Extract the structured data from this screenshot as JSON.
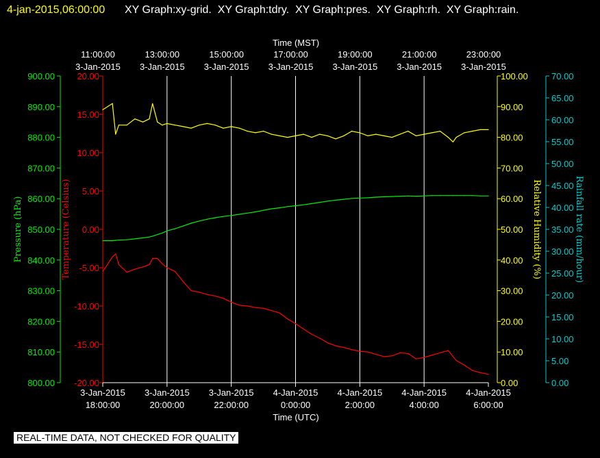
{
  "header": {
    "timestamp": "4-jan-2015,06:00:00",
    "titles": "XY Graph:xy-grid.  XY Graph:tdry.  XY Graph:pres.  XY Graph:rh.  XY Graph:rain."
  },
  "notice": "REAL-TIME DATA, NOT CHECKED FOR QUALITY",
  "colors": {
    "background": "#000000",
    "temperature": "#ff0000",
    "pressure": "#00ee00",
    "humidity": "#ffff00",
    "rainfall": "#00cccc",
    "grid": "#ffffff",
    "axis_text": "#ffffff",
    "timestamp": "#ffff00"
  },
  "chart_data": {
    "type": "line",
    "grid": true,
    "top_axis": {
      "title": "Time (MST)",
      "ticks": [
        {
          "time": "11:00:00",
          "date": "3-Jan-2015"
        },
        {
          "time": "13:00:00",
          "date": "3-Jan-2015"
        },
        {
          "time": "15:00:00",
          "date": "3-Jan-2015"
        },
        {
          "time": "17:00:00",
          "date": "3-Jan-2015"
        },
        {
          "time": "19:00:00",
          "date": "3-Jan-2015"
        },
        {
          "time": "21:00:00",
          "date": "3-Jan-2015"
        },
        {
          "time": "23:00:00",
          "date": "3-Jan-2015"
        }
      ]
    },
    "bottom_axis": {
      "title": "Time (UTC)",
      "ticks": [
        {
          "date": "3-Jan-2015",
          "time": "18:00:00"
        },
        {
          "date": "3-Jan-2015",
          "time": "20:00:00"
        },
        {
          "date": "3-Jan-2015",
          "time": "22:00:00"
        },
        {
          "date": "4-Jan-2015",
          "time": "0:00:00"
        },
        {
          "date": "4-Jan-2015",
          "time": "2:00:00"
        },
        {
          "date": "4-Jan-2015",
          "time": "4:00:00"
        },
        {
          "date": "4-Jan-2015",
          "time": "6:00:00"
        }
      ],
      "range": [
        "2015-01-03 18:00",
        "2015-01-04 06:00"
      ]
    },
    "axes": {
      "pressure": {
        "label": "Pressure (hPa)",
        "ylim": [
          800,
          900
        ],
        "ticks": [
          "800.00",
          "810.00",
          "820.00",
          "830.00",
          "840.00",
          "850.00",
          "860.00",
          "870.00",
          "880.00",
          "890.00",
          "900.00"
        ]
      },
      "temperature": {
        "label": "Temperature (Celsius)",
        "ylim": [
          -20,
          20
        ],
        "ticks": [
          "-20.00",
          "-15.00",
          "-10.00",
          "-5.00",
          "0.00",
          "5.00",
          "10.00",
          "15.00",
          "20.00"
        ]
      },
      "humidity": {
        "label": "Relative Humidity (%)",
        "ylim": [
          0,
          100
        ],
        "ticks": [
          "0.00",
          "10.00",
          "20.00",
          "30.00",
          "40.00",
          "50.00",
          "60.00",
          "70.00",
          "80.00",
          "90.00",
          "100.00"
        ]
      },
      "rainfall": {
        "label": "Rainfall rate (mm/hour)",
        "ylim": [
          0,
          70
        ],
        "ticks": [
          "0.00",
          "5.00",
          "10.00",
          "15.00",
          "20.00",
          "25.00",
          "30.00",
          "35.00",
          "40.00",
          "45.00",
          "50.00",
          "55.00",
          "60.00",
          "65.00",
          "70.00"
        ]
      }
    },
    "hours_since_2015-01-03T18:00Z": [
      0,
      0.3,
      0.4,
      0.5,
      0.75,
      1.0,
      1.25,
      1.45,
      1.55,
      1.7,
      1.85,
      2.0,
      2.25,
      2.5,
      2.75,
      3.0,
      3.25,
      3.5,
      3.75,
      4.0,
      4.25,
      4.5,
      4.75,
      5.0,
      5.25,
      5.5,
      5.75,
      6.0,
      6.25,
      6.5,
      6.75,
      7.0,
      7.25,
      7.5,
      7.75,
      8.0,
      8.25,
      8.5,
      8.75,
      9.0,
      9.25,
      9.5,
      9.75,
      10.0,
      10.25,
      10.5,
      10.75,
      10.9,
      11.0,
      11.25,
      11.5,
      11.75,
      12.0
    ],
    "series": [
      {
        "name": "tdry",
        "axis": "temperature",
        "values": [
          -5.5,
          -3.6,
          -3.2,
          -4.6,
          -5.6,
          -5.2,
          -4.9,
          -4.6,
          -3.8,
          -3.8,
          -4.5,
          -5.0,
          -5.5,
          -6.8,
          -8.0,
          -8.2,
          -8.5,
          -8.7,
          -9.0,
          -9.5,
          -9.9,
          -10.0,
          -10.2,
          -10.3,
          -10.6,
          -10.9,
          -11.7,
          -12.3,
          -13.0,
          -13.7,
          -14.2,
          -14.8,
          -15.2,
          -15.4,
          -15.7,
          -15.9,
          -16.0,
          -16.3,
          -16.6,
          -16.5,
          -16.1,
          -16.2,
          -16.9,
          -16.7,
          -16.4,
          -16.1,
          -15.8,
          -16.6,
          -17.1,
          -17.7,
          -18.4,
          -18.7,
          -18.9
        ]
      },
      {
        "name": "pres",
        "axis": "pressure",
        "values": [
          846.3,
          846.3,
          846.4,
          846.5,
          846.6,
          846.9,
          847.2,
          847.5,
          847.8,
          848.3,
          848.8,
          849.5,
          850.2,
          851.1,
          852.0,
          852.7,
          853.3,
          853.8,
          854.2,
          854.5,
          854.9,
          855.3,
          855.7,
          856.2,
          856.7,
          857.0,
          857.4,
          857.7,
          858.0,
          858.4,
          858.8,
          859.2,
          859.5,
          859.8,
          860.1,
          860.2,
          860.3,
          860.5,
          860.6,
          860.7,
          860.8,
          860.9,
          860.8,
          860.9,
          861.0,
          861.0,
          861.0,
          861.0,
          861.0,
          861.0,
          861.0,
          860.9,
          860.9
        ]
      },
      {
        "name": "rh",
        "axis": "humidity",
        "values": [
          89.0,
          91.0,
          81.0,
          84.0,
          84.0,
          86.0,
          85.0,
          86.0,
          91.0,
          85.0,
          84.0,
          84.5,
          84.0,
          83.5,
          83.0,
          84.0,
          84.5,
          84.0,
          83.0,
          83.5,
          83.0,
          82.0,
          81.5,
          82.0,
          81.0,
          80.5,
          80.0,
          80.5,
          81.0,
          80.0,
          81.0,
          80.5,
          79.5,
          80.5,
          82.0,
          81.5,
          80.5,
          81.0,
          80.5,
          80.0,
          81.0,
          82.0,
          80.5,
          81.0,
          81.5,
          82.0,
          80.0,
          78.5,
          80.0,
          81.5,
          82.0,
          82.5,
          82.5
        ]
      },
      {
        "name": "rain",
        "axis": "rainfall",
        "values": []
      }
    ]
  }
}
